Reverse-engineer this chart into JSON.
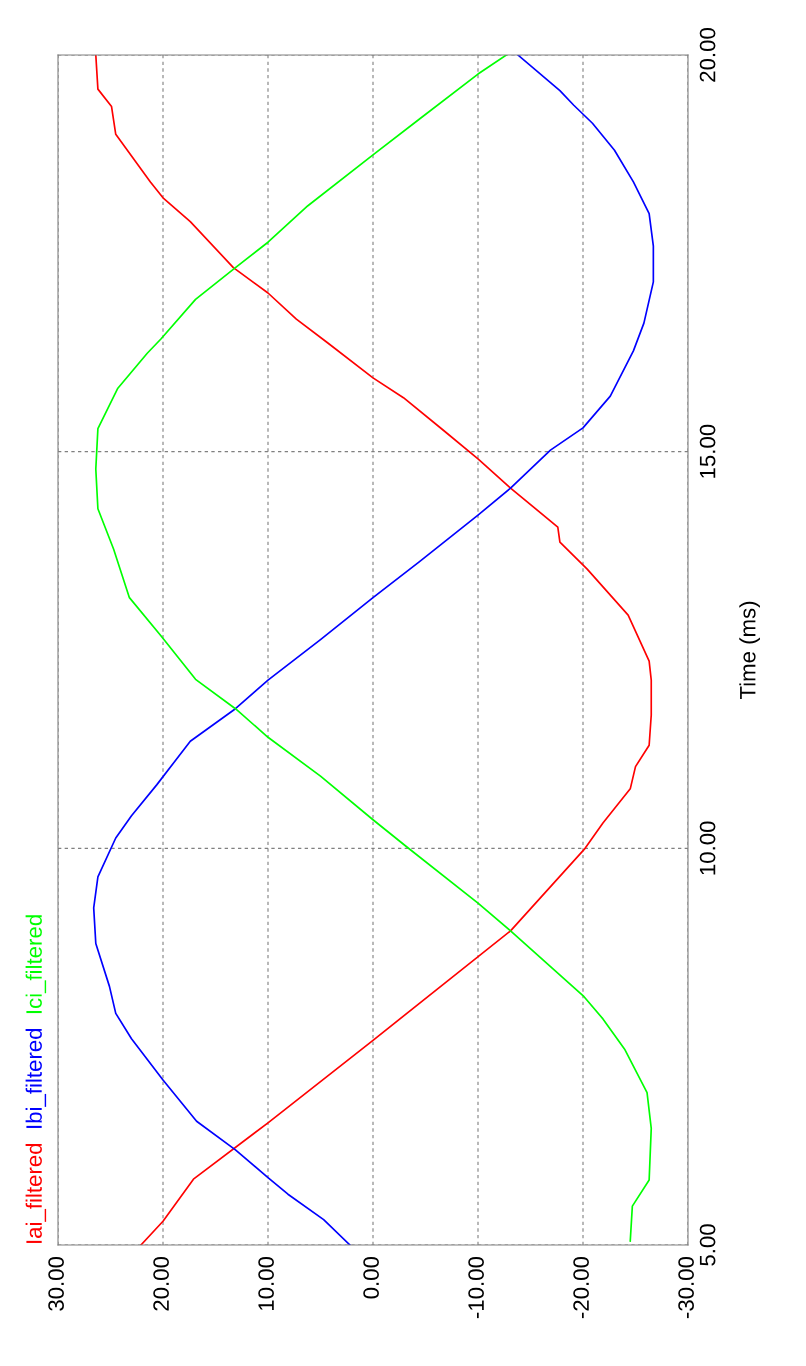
{
  "chart_data": {
    "type": "line",
    "orientation": "horizontal",
    "ylabel": "Time (ms)",
    "xlim": [
      30,
      -30
    ],
    "xticks": [
      {
        "value": 30,
        "label": "30.00"
      },
      {
        "value": 20,
        "label": "20.00"
      },
      {
        "value": 10,
        "label": "10.00"
      },
      {
        "value": 0,
        "label": "0.00"
      },
      {
        "value": -10,
        "label": "-10.00"
      },
      {
        "value": -20,
        "label": "-20.00"
      },
      {
        "value": -30,
        "label": "-30.00"
      }
    ],
    "ylim": [
      5,
      20
    ],
    "yticks": [
      {
        "value": 5,
        "label": "5.00"
      },
      {
        "value": 10,
        "label": "10.00"
      },
      {
        "value": 15,
        "label": "15.00"
      },
      {
        "value": 20,
        "label": "20.00"
      }
    ],
    "grid": true,
    "legend": "left",
    "line_style": "solid",
    "series": [
      {
        "name": "Iai_filtered",
        "color": "#ff0000",
        "x": [
          5.0,
          5.3,
          5.83,
          6.54,
          7.58,
          8.96,
          10.0,
          10.32,
          10.75,
          11.03,
          11.3,
          11.68,
          12.12,
          12.36,
          12.94,
          13.52,
          13.86,
          14.05,
          14.54,
          14.91,
          15.27,
          15.68,
          15.93,
          16.37,
          16.67,
          17.0,
          17.32,
          17.9,
          18.2,
          18.4,
          19.0,
          19.35,
          19.57,
          20.0
        ],
        "values": [
          22.1,
          20.0,
          17.1,
          10.0,
          0.0,
          -13.1,
          -20.2,
          -21.9,
          -24.5,
          -25.0,
          -26.3,
          -26.5,
          -26.5,
          -26.3,
          -24.3,
          -20.4,
          -17.8,
          -17.6,
          -13.1,
          -10.0,
          -6.7,
          -2.9,
          0.0,
          4.3,
          7.3,
          10.0,
          13.3,
          17.4,
          20.0,
          21.2,
          24.5,
          24.9,
          26.2,
          26.4
        ]
      },
      {
        "name": "Ibi_filtered",
        "color": "#0000ff",
        "x": [
          5.0,
          5.32,
          5.64,
          5.85,
          6.2,
          6.56,
          7.08,
          7.6,
          7.92,
          8.26,
          8.8,
          9.25,
          9.64,
          10.13,
          10.41,
          10.8,
          11.35,
          11.76,
          12.12,
          12.63,
          13.16,
          13.61,
          14.2,
          14.54,
          15.02,
          15.3,
          15.7,
          16.27,
          16.62,
          17.14,
          17.59,
          18.0,
          18.4,
          18.8,
          19.14,
          19.37,
          19.55,
          20.0
        ],
        "values": [
          2.2,
          4.7,
          8.1,
          10.0,
          13.1,
          16.8,
          20.0,
          23.0,
          24.5,
          25.1,
          26.4,
          26.6,
          26.2,
          24.5,
          23.0,
          20.6,
          17.4,
          13.1,
          10.0,
          5.0,
          0.0,
          -4.4,
          -10.0,
          -13.1,
          -16.9,
          -20.0,
          -22.6,
          -24.8,
          -25.8,
          -26.7,
          -26.7,
          -26.3,
          -24.8,
          -23.0,
          -20.9,
          -19.1,
          -17.8,
          -13.8
        ]
      },
      {
        "name": "Ici_filtered",
        "color": "#00ff00",
        "x": [
          5.05,
          5.49,
          5.82,
          6.47,
          6.92,
          7.46,
          7.85,
          8.13,
          8.96,
          9.31,
          10.02,
          10.36,
          10.91,
          11.4,
          11.76,
          12.13,
          12.68,
          13.16,
          13.77,
          14.28,
          14.78,
          15.29,
          15.8,
          16.24,
          16.42,
          16.92,
          17.32,
          17.64,
          18.1,
          18.74,
          19.19,
          19.76,
          20.0
        ],
        "values": [
          -24.5,
          -24.7,
          -26.3,
          -26.5,
          -26.1,
          -24.0,
          -21.9,
          -20.1,
          -13.1,
          -10.0,
          -3.2,
          0.0,
          5.0,
          10.0,
          13.1,
          16.9,
          20.2,
          23.2,
          24.7,
          26.2,
          26.4,
          26.2,
          24.3,
          21.5,
          20.2,
          16.9,
          13.1,
          10.0,
          6.2,
          0.0,
          -4.4,
          -10.0,
          -12.7
        ]
      }
    ]
  }
}
